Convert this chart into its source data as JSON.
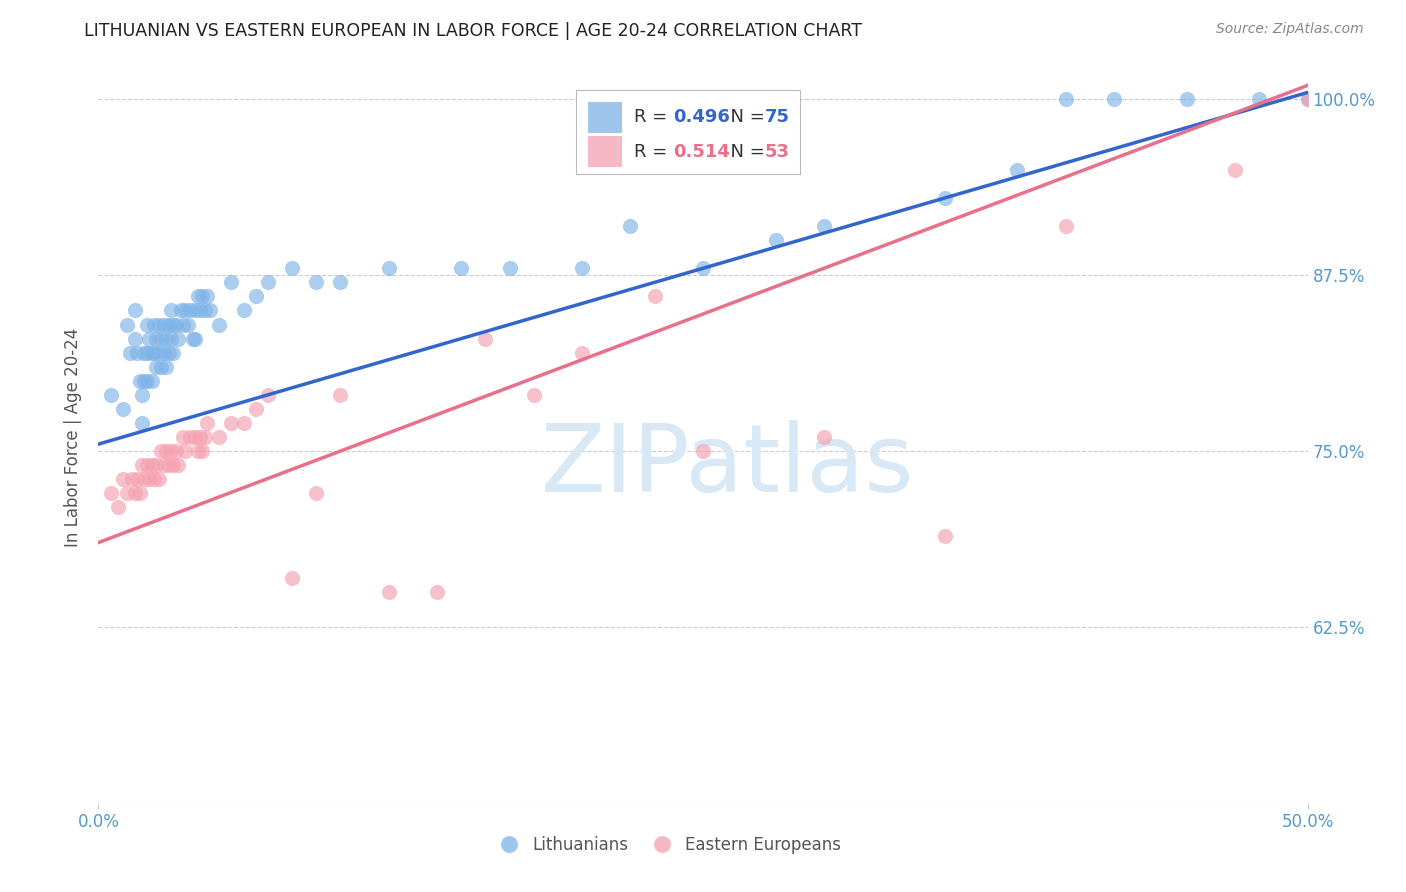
{
  "title": "LITHUANIAN VS EASTERN EUROPEAN IN LABOR FORCE | AGE 20-24 CORRELATION CHART",
  "source": "Source: ZipAtlas.com",
  "ylabel": "In Labor Force | Age 20-24",
  "ytick_labels": [
    "100.0%",
    "87.5%",
    "75.0%",
    "62.5%"
  ],
  "ytick_values": [
    1.0,
    0.875,
    0.75,
    0.625
  ],
  "xlim": [
    0.0,
    0.5
  ],
  "ylim": [
    0.5,
    1.02
  ],
  "legend1_r": "0.496",
  "legend1_n": "75",
  "legend2_r": "0.514",
  "legend2_n": "53",
  "blue_color": "#7EB3E8",
  "pink_color": "#F4A0B0",
  "line_blue": "#3366CC",
  "line_pink": "#E8708A",
  "title_color": "#222222",
  "source_color": "#888888",
  "axis_tick_color": "#5599CC",
  "ylabel_color": "#555555",
  "watermark_text": "ZIPatlas",
  "watermark_color": "#D8E8F4",
  "background_color": "#FFFFFF",
  "grid_color": "#CCCCCC",
  "blue_line_x0": 0.0,
  "blue_line_x1": 0.5,
  "blue_line_y0": 0.755,
  "blue_line_y1": 1.005,
  "pink_line_x0": 0.0,
  "pink_line_x1": 0.5,
  "pink_line_y0": 0.685,
  "pink_line_y1": 1.01,
  "blue_scatter_x": [
    0.005,
    0.01,
    0.012,
    0.013,
    0.015,
    0.015,
    0.016,
    0.017,
    0.018,
    0.018,
    0.019,
    0.019,
    0.02,
    0.02,
    0.02,
    0.021,
    0.022,
    0.022,
    0.023,
    0.023,
    0.024,
    0.024,
    0.025,
    0.025,
    0.026,
    0.026,
    0.027,
    0.027,
    0.028,
    0.028,
    0.029,
    0.029,
    0.03,
    0.03,
    0.031,
    0.031,
    0.032,
    0.033,
    0.034,
    0.035,
    0.036,
    0.037,
    0.038,
    0.039,
    0.04,
    0.04,
    0.041,
    0.042,
    0.043,
    0.044,
    0.045,
    0.046,
    0.05,
    0.055,
    0.06,
    0.065,
    0.07,
    0.08,
    0.09,
    0.1,
    0.12,
    0.15,
    0.17,
    0.2,
    0.22,
    0.25,
    0.28,
    0.3,
    0.35,
    0.38,
    0.4,
    0.42,
    0.45,
    0.48,
    0.5
  ],
  "blue_scatter_y": [
    0.79,
    0.78,
    0.84,
    0.82,
    0.85,
    0.83,
    0.82,
    0.8,
    0.79,
    0.77,
    0.82,
    0.8,
    0.84,
    0.82,
    0.8,
    0.83,
    0.82,
    0.8,
    0.84,
    0.82,
    0.83,
    0.81,
    0.84,
    0.82,
    0.83,
    0.81,
    0.84,
    0.82,
    0.83,
    0.81,
    0.84,
    0.82,
    0.85,
    0.83,
    0.84,
    0.82,
    0.84,
    0.83,
    0.85,
    0.84,
    0.85,
    0.84,
    0.85,
    0.83,
    0.85,
    0.83,
    0.86,
    0.85,
    0.86,
    0.85,
    0.86,
    0.85,
    0.84,
    0.87,
    0.85,
    0.86,
    0.87,
    0.88,
    0.87,
    0.87,
    0.88,
    0.88,
    0.88,
    0.88,
    0.91,
    0.88,
    0.9,
    0.91,
    0.93,
    0.95,
    1.0,
    1.0,
    1.0,
    1.0,
    1.0
  ],
  "pink_scatter_x": [
    0.005,
    0.008,
    0.01,
    0.012,
    0.014,
    0.015,
    0.016,
    0.017,
    0.018,
    0.019,
    0.02,
    0.021,
    0.022,
    0.023,
    0.024,
    0.025,
    0.026,
    0.027,
    0.028,
    0.029,
    0.03,
    0.031,
    0.032,
    0.033,
    0.035,
    0.036,
    0.038,
    0.04,
    0.041,
    0.042,
    0.043,
    0.044,
    0.045,
    0.05,
    0.055,
    0.06,
    0.065,
    0.07,
    0.08,
    0.09,
    0.1,
    0.12,
    0.14,
    0.16,
    0.18,
    0.2,
    0.23,
    0.25,
    0.3,
    0.35,
    0.4,
    0.47,
    0.5
  ],
  "pink_scatter_y": [
    0.72,
    0.71,
    0.73,
    0.72,
    0.73,
    0.72,
    0.73,
    0.72,
    0.74,
    0.73,
    0.74,
    0.73,
    0.74,
    0.73,
    0.74,
    0.73,
    0.75,
    0.74,
    0.75,
    0.74,
    0.75,
    0.74,
    0.75,
    0.74,
    0.76,
    0.75,
    0.76,
    0.76,
    0.75,
    0.76,
    0.75,
    0.76,
    0.77,
    0.76,
    0.77,
    0.77,
    0.78,
    0.79,
    0.66,
    0.72,
    0.79,
    0.65,
    0.65,
    0.83,
    0.79,
    0.82,
    0.86,
    0.75,
    0.76,
    0.69,
    0.91,
    0.95,
    1.0
  ]
}
